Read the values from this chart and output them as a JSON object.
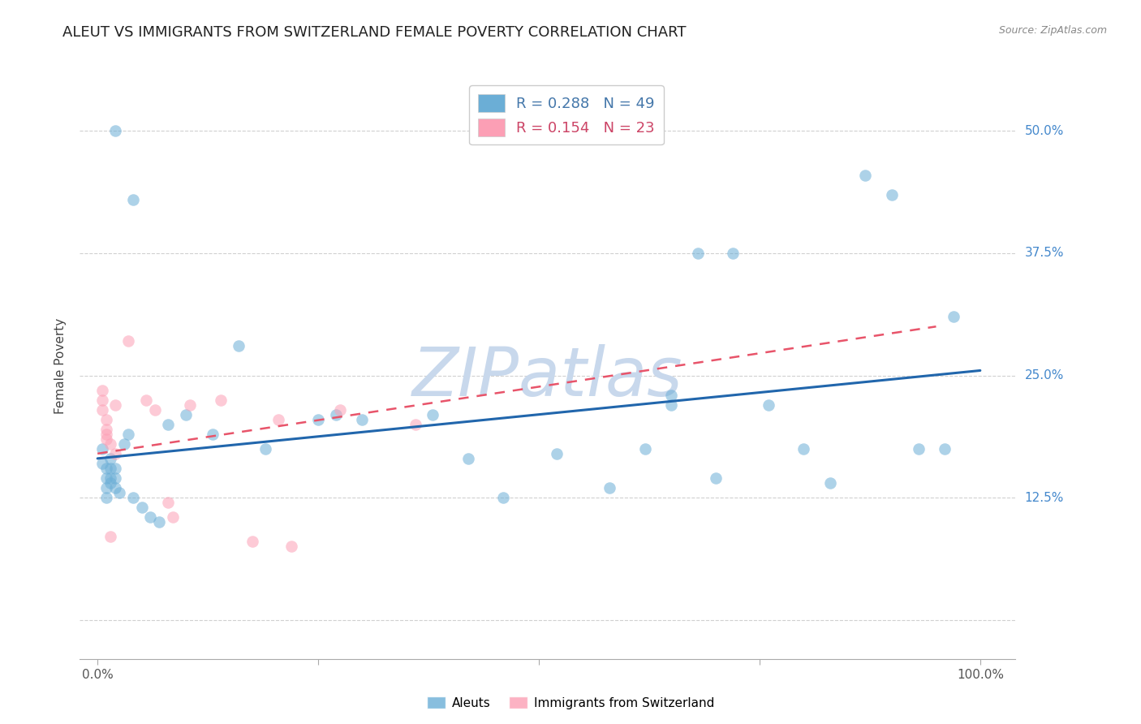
{
  "title": "ALEUT VS IMMIGRANTS FROM SWITZERLAND FEMALE POVERTY CORRELATION CHART",
  "source": "Source: ZipAtlas.com",
  "ylabel": "Female Poverty",
  "yticks": [
    0.0,
    0.125,
    0.25,
    0.375,
    0.5
  ],
  "ytick_labels": [
    "",
    "12.5%",
    "25.0%",
    "37.5%",
    "50.0%"
  ],
  "xlim": [
    -0.02,
    1.04
  ],
  "ylim": [
    -0.04,
    0.56
  ],
  "legend_r1": "R = 0.288",
  "legend_n1": "N = 49",
  "legend_r2": "R = 0.154",
  "legend_n2": "N = 23",
  "aleut_color": "#6baed6",
  "swiss_color": "#fc9fb5",
  "line_aleut_color": "#2166ac",
  "line_swiss_color": "#e8546a",
  "background_color": "#ffffff",
  "aleut_x": [
    0.02,
    0.04,
    0.005,
    0.005,
    0.01,
    0.01,
    0.01,
    0.01,
    0.015,
    0.015,
    0.015,
    0.015,
    0.02,
    0.02,
    0.02,
    0.025,
    0.03,
    0.035,
    0.04,
    0.05,
    0.06,
    0.07,
    0.08,
    0.1,
    0.13,
    0.16,
    0.19,
    0.25,
    0.27,
    0.3,
    0.38,
    0.42,
    0.46,
    0.52,
    0.58,
    0.62,
    0.65,
    0.68,
    0.72,
    0.76,
    0.8,
    0.83,
    0.87,
    0.9,
    0.93,
    0.96,
    0.97,
    0.65,
    0.7
  ],
  "aleut_y": [
    0.5,
    0.43,
    0.175,
    0.16,
    0.155,
    0.145,
    0.135,
    0.125,
    0.165,
    0.155,
    0.145,
    0.14,
    0.155,
    0.145,
    0.135,
    0.13,
    0.18,
    0.19,
    0.125,
    0.115,
    0.105,
    0.1,
    0.2,
    0.21,
    0.19,
    0.28,
    0.175,
    0.205,
    0.21,
    0.205,
    0.21,
    0.165,
    0.125,
    0.17,
    0.135,
    0.175,
    0.22,
    0.375,
    0.375,
    0.22,
    0.175,
    0.14,
    0.455,
    0.435,
    0.175,
    0.175,
    0.31,
    0.23,
    0.145
  ],
  "swiss_x": [
    0.005,
    0.005,
    0.005,
    0.01,
    0.01,
    0.01,
    0.01,
    0.015,
    0.015,
    0.02,
    0.02,
    0.035,
    0.055,
    0.065,
    0.08,
    0.085,
    0.105,
    0.14,
    0.175,
    0.205,
    0.22,
    0.275,
    0.36
  ],
  "swiss_y": [
    0.235,
    0.225,
    0.215,
    0.205,
    0.195,
    0.19,
    0.185,
    0.18,
    0.085,
    0.22,
    0.17,
    0.285,
    0.225,
    0.215,
    0.12,
    0.105,
    0.22,
    0.225,
    0.08,
    0.205,
    0.075,
    0.215,
    0.2
  ],
  "aleut_trend_x": [
    0.0,
    1.0
  ],
  "aleut_trend_y": [
    0.165,
    0.255
  ],
  "swiss_trend_x": [
    0.0,
    0.95
  ],
  "swiss_trend_y": [
    0.17,
    0.3
  ],
  "marker_size": 110,
  "alpha": 0.55,
  "title_fontsize": 13,
  "label_fontsize": 11,
  "tick_fontsize": 11,
  "watermark": "ZIPatlas",
  "watermark_color": "#c8d8ec",
  "watermark_fontsize": 60
}
